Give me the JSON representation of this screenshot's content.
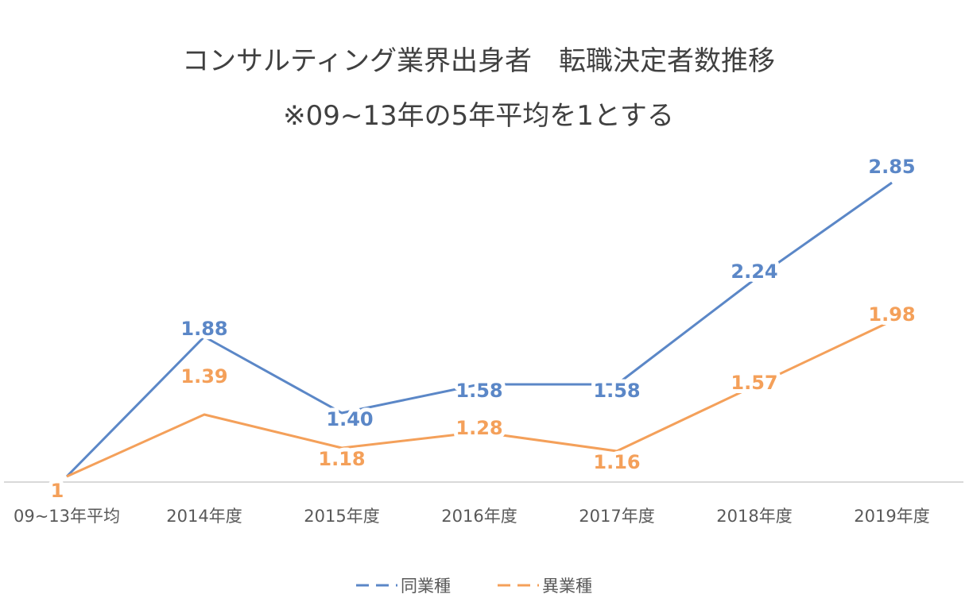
{
  "chart_data": {
    "type": "line",
    "title": "コンサルティング業界出身者　転職決定者数推移",
    "subtitle": "※09~13年の5年平均を1とする",
    "categories": [
      "09~13年平均",
      "2014年度",
      "2015年度",
      "2016年度",
      "2017年度",
      "2018年度",
      "2019年度"
    ],
    "series": [
      {
        "name": "同業種",
        "color": "#5B87C7",
        "values": [
          1,
          1.88,
          1.4,
          1.58,
          1.58,
          2.24,
          2.85
        ],
        "labels": [
          "",
          "1.88",
          "1.40",
          "1.58",
          "1.58",
          "2.24",
          "2.85"
        ]
      },
      {
        "name": "異業種",
        "color": "#F4A05A",
        "values": [
          1,
          1.39,
          1.18,
          1.28,
          1.16,
          1.57,
          1.98
        ],
        "labels": [
          "1",
          "1.39",
          "1.18",
          "1.28",
          "1.16",
          "1.57",
          "1.98"
        ]
      }
    ],
    "xlabel": "",
    "ylabel": "",
    "ylim": [
      0.95,
      3.0
    ],
    "grid": false,
    "legend": "bottom",
    "legend_style": "dashed"
  }
}
